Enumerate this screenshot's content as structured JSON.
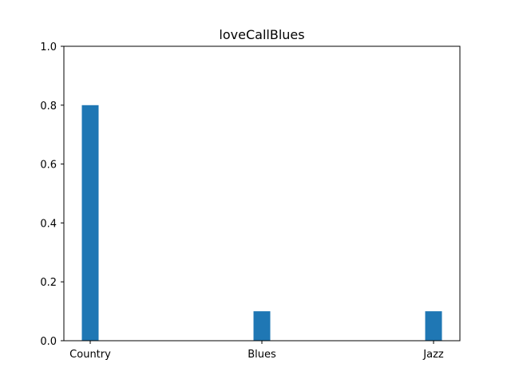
{
  "chart_data": {
    "type": "bar",
    "title": "loveCallBlues",
    "xlabel": "",
    "ylabel": "",
    "categories": [
      "Country",
      "Blues",
      "Jazz"
    ],
    "values": [
      0.8,
      0.1,
      0.1
    ],
    "ylim": [
      0,
      1.0
    ],
    "yticks": [
      0.0,
      0.2,
      0.4,
      0.6,
      0.8,
      1.0
    ],
    "ytick_labels": [
      "0.0",
      "0.2",
      "0.4",
      "0.6",
      "0.8",
      "1.0"
    ],
    "grid": false,
    "bar_color": "#1f77b4"
  }
}
